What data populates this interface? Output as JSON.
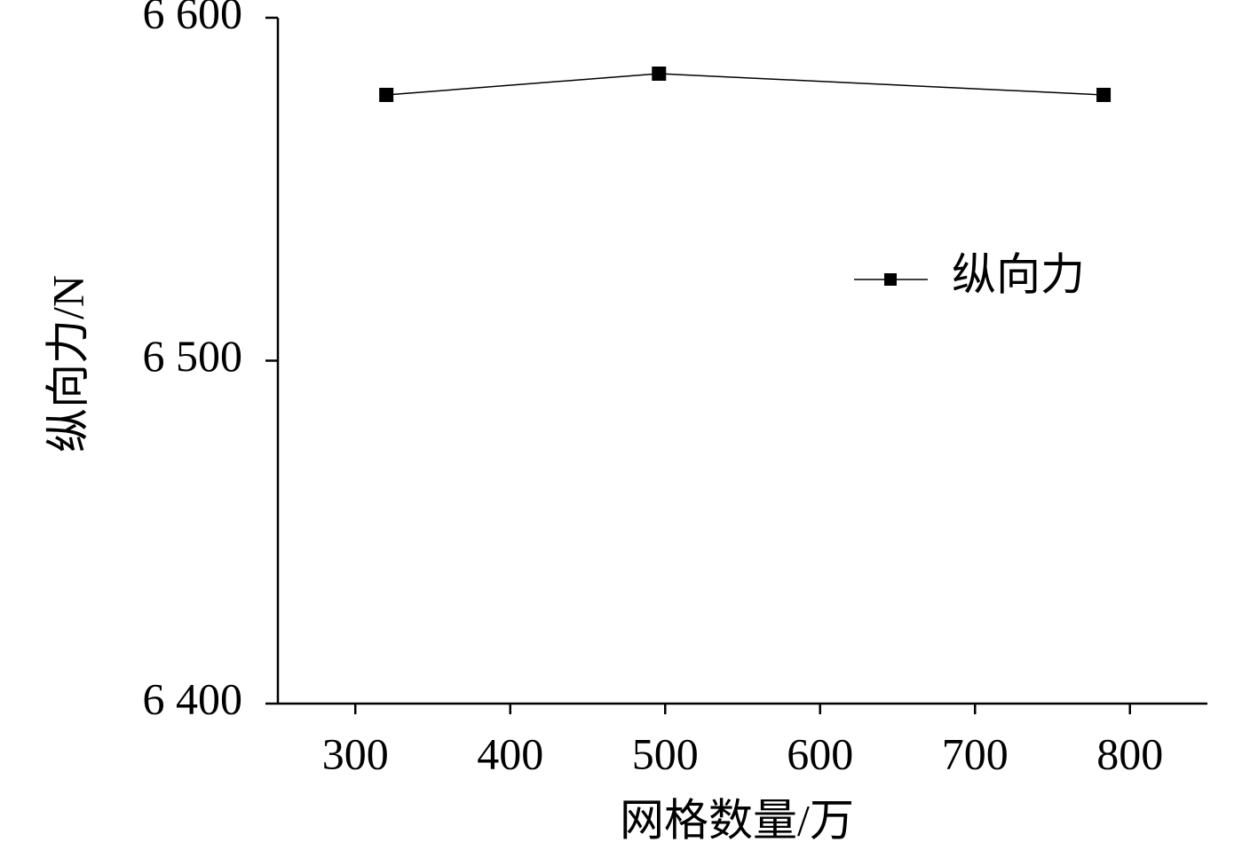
{
  "chart_data": {
    "type": "line",
    "x_label": "网格数量/万",
    "y_label": "纵向力/N",
    "series": [
      {
        "name": "纵向力",
        "color": "#000000",
        "x": [
          320,
          496,
          783
        ],
        "values": [
          6577.5,
          6583.7,
          6577.5
        ]
      }
    ],
    "xlim": [
      250,
      850
    ],
    "xticks": [
      300,
      400,
      500,
      600,
      700,
      800
    ],
    "ylim": [
      6400,
      6600
    ],
    "yticks": [
      {
        "value": 6400,
        "label": "6 400"
      },
      {
        "value": 6500,
        "label": "6 500"
      },
      {
        "value": 6600,
        "label": "6 600"
      }
    ],
    "grid": false,
    "legend": "upper right"
  }
}
